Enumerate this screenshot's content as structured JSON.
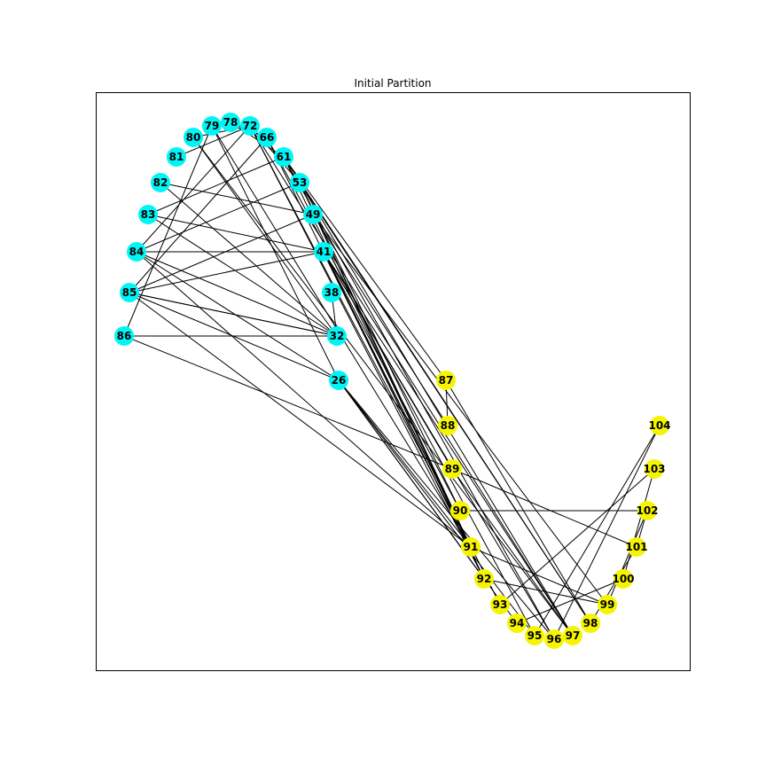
{
  "title": "Initial Partition",
  "colors": {
    "partition_a": "#00f5f5",
    "partition_b": "#f5f500",
    "edge": "#000000",
    "frame": "#000000"
  },
  "nodes": [
    {
      "id": "78",
      "group": "a"
    },
    {
      "id": "79",
      "group": "a"
    },
    {
      "id": "72",
      "group": "a"
    },
    {
      "id": "80",
      "group": "a"
    },
    {
      "id": "66",
      "group": "a"
    },
    {
      "id": "81",
      "group": "a"
    },
    {
      "id": "61",
      "group": "a"
    },
    {
      "id": "82",
      "group": "a"
    },
    {
      "id": "53",
      "group": "a"
    },
    {
      "id": "83",
      "group": "a"
    },
    {
      "id": "49",
      "group": "a"
    },
    {
      "id": "84",
      "group": "a"
    },
    {
      "id": "41",
      "group": "a"
    },
    {
      "id": "85",
      "group": "a"
    },
    {
      "id": "38",
      "group": "a"
    },
    {
      "id": "86",
      "group": "a"
    },
    {
      "id": "32",
      "group": "a"
    },
    {
      "id": "26",
      "group": "a"
    },
    {
      "id": "87",
      "group": "b"
    },
    {
      "id": "88",
      "group": "b"
    },
    {
      "id": "104",
      "group": "b"
    },
    {
      "id": "89",
      "group": "b"
    },
    {
      "id": "103",
      "group": "b"
    },
    {
      "id": "90",
      "group": "b"
    },
    {
      "id": "102",
      "group": "b"
    },
    {
      "id": "91",
      "group": "b"
    },
    {
      "id": "101",
      "group": "b"
    },
    {
      "id": "92",
      "group": "b"
    },
    {
      "id": "100",
      "group": "b"
    },
    {
      "id": "93",
      "group": "b"
    },
    {
      "id": "99",
      "group": "b"
    },
    {
      "id": "94",
      "group": "b"
    },
    {
      "id": "98",
      "group": "b"
    },
    {
      "id": "95",
      "group": "b"
    },
    {
      "id": "96",
      "group": "b"
    },
    {
      "id": "97",
      "group": "b"
    }
  ],
  "edges": [
    [
      "79",
      "78"
    ],
    [
      "78",
      "66"
    ],
    [
      "78",
      "61"
    ],
    [
      "72",
      "84"
    ],
    [
      "72",
      "53"
    ],
    [
      "72",
      "97"
    ],
    [
      "72",
      "92"
    ],
    [
      "72",
      "91"
    ],
    [
      "80",
      "72"
    ],
    [
      "80",
      "32"
    ],
    [
      "80",
      "97"
    ],
    [
      "81",
      "72"
    ],
    [
      "66",
      "85"
    ],
    [
      "66",
      "92"
    ],
    [
      "66",
      "95"
    ],
    [
      "61",
      "83"
    ],
    [
      "61",
      "91"
    ],
    [
      "61",
      "96"
    ],
    [
      "61",
      "98"
    ],
    [
      "79",
      "86"
    ],
    [
      "79",
      "91"
    ],
    [
      "79",
      "26"
    ],
    [
      "82",
      "49"
    ],
    [
      "82",
      "32"
    ],
    [
      "53",
      "84"
    ],
    [
      "53",
      "90"
    ],
    [
      "53",
      "91"
    ],
    [
      "53",
      "98"
    ],
    [
      "53",
      "92"
    ],
    [
      "83",
      "32"
    ],
    [
      "83",
      "41"
    ],
    [
      "49",
      "85"
    ],
    [
      "49",
      "88"
    ],
    [
      "49",
      "99"
    ],
    [
      "84",
      "41"
    ],
    [
      "84",
      "26"
    ],
    [
      "84",
      "32"
    ],
    [
      "84",
      "91"
    ],
    [
      "41",
      "85"
    ],
    [
      "41",
      "89"
    ],
    [
      "41",
      "90"
    ],
    [
      "41",
      "91"
    ],
    [
      "41",
      "92"
    ],
    [
      "41",
      "93"
    ],
    [
      "41",
      "96"
    ],
    [
      "41",
      "97"
    ],
    [
      "85",
      "32"
    ],
    [
      "85",
      "32"
    ],
    [
      "85",
      "26"
    ],
    [
      "85",
      "91"
    ],
    [
      "38",
      "32"
    ],
    [
      "86",
      "32"
    ],
    [
      "86",
      "89"
    ],
    [
      "26",
      "91"
    ],
    [
      "26",
      "94"
    ],
    [
      "26",
      "95"
    ],
    [
      "26",
      "96"
    ],
    [
      "26",
      "92"
    ],
    [
      "87",
      "88"
    ],
    [
      "87",
      "98"
    ],
    [
      "89",
      "101"
    ],
    [
      "89",
      "97"
    ],
    [
      "90",
      "102"
    ],
    [
      "91",
      "99"
    ],
    [
      "92",
      "99"
    ],
    [
      "93",
      "103"
    ],
    [
      "94",
      "100"
    ],
    [
      "95",
      "104"
    ],
    [
      "96",
      "104"
    ],
    [
      "98",
      "101"
    ],
    [
      "99",
      "102"
    ],
    [
      "100",
      "103"
    ],
    [
      "102",
      "101"
    ],
    [
      "61",
      "87"
    ],
    [
      "53",
      "97"
    ]
  ]
}
